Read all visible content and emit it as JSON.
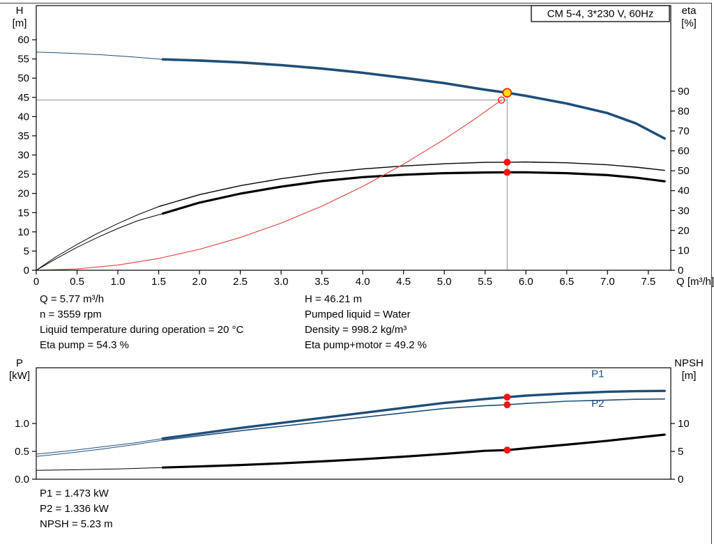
{
  "colors": {
    "blue": "#1f4e79",
    "black": "#000000",
    "red": "#e25048",
    "marker": "#f61414",
    "yellow": "#ffdf00",
    "gray": "#909090"
  },
  "chart_data": [
    {
      "id": "head-eta-chart",
      "type": "line",
      "title_box": "CM 5-4, 3*230 V, 60Hz",
      "x_axis": {
        "label": "Q [m³/h]",
        "min": 0,
        "max": 7.775,
        "ticks": [
          0,
          0.5,
          1,
          1.5,
          2,
          2.5,
          3,
          3.5,
          4,
          4.5,
          5,
          5.5,
          6,
          6.5,
          7,
          7.5
        ],
        "tick_labels": [
          "0",
          "0.5",
          "1.0",
          "1.5",
          "2.0",
          "2.5",
          "3.0",
          "3.5",
          "4.0",
          "4.5",
          "5.0",
          "5.5",
          "6.0",
          "6.5",
          "7.0",
          "7.5"
        ]
      },
      "y_left": {
        "title": [
          "H",
          "[m]"
        ],
        "min": 0,
        "max": 68.9,
        "ticks": [
          0,
          5,
          10,
          15,
          20,
          25,
          30,
          35,
          40,
          45,
          50,
          55,
          60
        ],
        "tick_labels": [
          "0",
          "5",
          "10",
          "15",
          "20",
          "25",
          "30",
          "35",
          "40",
          "45",
          "50",
          "55",
          "60"
        ]
      },
      "y_right": {
        "title": [
          "eta",
          "[%]"
        ],
        "min": 0,
        "max": 133,
        "ticks": [
          0,
          10,
          20,
          30,
          40,
          50,
          60,
          70,
          80,
          90
        ],
        "tick_labels": [
          "0",
          "10",
          "20",
          "30",
          "40",
          "50",
          "60",
          "70",
          "80",
          "90"
        ]
      },
      "series": [
        {
          "name": "head-curve-ext",
          "axis": "left",
          "color": "blue",
          "width": 1,
          "x": [
            0,
            0.4,
            0.8,
            1.2,
            1.55
          ],
          "y": [
            56.8,
            56.5,
            56.1,
            55.5,
            54.9
          ]
        },
        {
          "name": "head-curve",
          "axis": "left",
          "color": "blue",
          "width": 3.6,
          "x": [
            1.55,
            2,
            2.5,
            3,
            3.5,
            4,
            4.5,
            5,
            5.5,
            5.77,
            6,
            6.5,
            7,
            7.35,
            7.7
          ],
          "y": [
            54.9,
            54.6,
            54.1,
            53.4,
            52.5,
            51.4,
            50.1,
            48.7,
            47.0,
            46.21,
            45.4,
            43.4,
            40.9,
            38.2,
            34.3
          ]
        },
        {
          "name": "eta-pump-curve-ext",
          "axis": "right",
          "color": "black",
          "width": 1,
          "x": [
            0,
            0.25,
            0.5,
            0.75,
            1,
            1.25,
            1.5
          ],
          "y": [
            0,
            7,
            13,
            18.5,
            23.5,
            28,
            32
          ]
        },
        {
          "name": "eta-pump-curve",
          "axis": "right",
          "color": "black",
          "width": 1.4,
          "x": [
            1.5,
            2,
            2.5,
            3,
            3.5,
            4,
            4.5,
            5,
            5.5,
            5.77,
            6,
            6.5,
            7,
            7.35,
            7.7
          ],
          "y": [
            32,
            38,
            42.5,
            46,
            48.8,
            50.9,
            52.4,
            53.5,
            54.2,
            54.3,
            54.4,
            54.0,
            53.0,
            51.8,
            50.2
          ]
        },
        {
          "name": "eta-pump-motor-curve-ext",
          "axis": "right",
          "color": "black",
          "width": 1,
          "x": [
            0,
            0.25,
            0.5,
            0.75,
            1,
            1.25,
            1.55
          ],
          "y": [
            0,
            6,
            11.5,
            16.5,
            21,
            25,
            28.5
          ]
        },
        {
          "name": "eta-pump-motor-curve",
          "axis": "right",
          "color": "black",
          "width": 3.2,
          "x": [
            1.55,
            2,
            2.5,
            3,
            3.5,
            4,
            4.5,
            5,
            5.5,
            5.77,
            6,
            6.5,
            7,
            7.35,
            7.7
          ],
          "y": [
            28.5,
            34,
            38.5,
            42,
            44.8,
            46.8,
            48.0,
            48.8,
            49.15,
            49.2,
            49.2,
            48.8,
            47.8,
            46.5,
            44.7
          ]
        },
        {
          "name": "system-curve",
          "axis": "left",
          "color": "red",
          "width": 1.2,
          "x": [
            0,
            0.5,
            1,
            1.5,
            2,
            2.5,
            3,
            3.5,
            4,
            4.5,
            5,
            5.35,
            5.7
          ],
          "y": [
            0,
            0.34,
            1.36,
            3.07,
            5.45,
            8.52,
            12.27,
            16.7,
            21.82,
            27.61,
            34.09,
            39.03,
            44.3
          ]
        }
      ],
      "ref_lines": [
        {
          "name": "duty-head-refline",
          "type": "h",
          "axis": "left",
          "v": 44.3,
          "from": 0,
          "to": 5.77
        },
        {
          "name": "duty-flow-refline",
          "type": "v",
          "axis": "left",
          "v": 5.77,
          "from": 0,
          "to": 46.21
        }
      ],
      "markers": [
        {
          "name": "requested-duty-point",
          "axis": "left",
          "x": 5.7,
          "y": 44.3,
          "r": 4.5,
          "fill": "none",
          "stroke": "marker",
          "sw": 1.3
        },
        {
          "name": "duty-point",
          "axis": "left",
          "x": 5.77,
          "y": 46.21,
          "r": 6,
          "fill": "yellow",
          "stroke": "marker",
          "sw": 1.6
        },
        {
          "name": "eta-pump-point",
          "axis": "right",
          "x": 5.77,
          "y": 54.3,
          "r": 5,
          "fill": "marker"
        },
        {
          "name": "eta-pump-motor-point",
          "axis": "right",
          "x": 5.77,
          "y": 49.2,
          "r": 5,
          "fill": "marker"
        }
      ]
    },
    {
      "id": "power-npsh-chart",
      "type": "line",
      "x_axis": {
        "label": "",
        "min": 0,
        "max": 7.775,
        "ticks": [],
        "tick_labels": []
      },
      "y_left": {
        "title": [
          "P",
          "[kW]"
        ],
        "min": 0,
        "max": 2,
        "ticks": [
          0,
          0.5,
          1
        ],
        "tick_labels": [
          "0.0",
          "0.5",
          "1.0"
        ]
      },
      "y_right": {
        "title": [
          "NPSH",
          "[m]"
        ],
        "min": 0,
        "max": 20,
        "ticks": [
          0,
          5,
          10
        ],
        "tick_labels": [
          "0",
          "5",
          "10"
        ]
      },
      "series": [
        {
          "name": "p1-curve-ext",
          "axis": "left",
          "color": "blue",
          "width": 1,
          "x": [
            0,
            0.4,
            0.8,
            1.2,
            1.55
          ],
          "y": [
            0.45,
            0.51,
            0.58,
            0.65,
            0.73
          ]
        },
        {
          "name": "p1-curve",
          "axis": "left",
          "color": "blue",
          "width": 3.4,
          "x": [
            1.55,
            2,
            2.5,
            3,
            3.5,
            4,
            4.5,
            5,
            5.5,
            5.77,
            6,
            6.5,
            7,
            7.35,
            7.7
          ],
          "y": [
            0.73,
            0.82,
            0.92,
            1.01,
            1.1,
            1.19,
            1.28,
            1.37,
            1.44,
            1.473,
            1.5,
            1.54,
            1.57,
            1.58,
            1.585
          ]
        },
        {
          "name": "p2-curve-ext",
          "axis": "left",
          "color": "blue",
          "width": 1,
          "x": [
            0,
            0.4,
            0.8,
            1.2,
            1.55
          ],
          "y": [
            0.41,
            0.47,
            0.54,
            0.62,
            0.7
          ]
        },
        {
          "name": "p2-curve",
          "axis": "left",
          "color": "blue",
          "width": 1.6,
          "x": [
            1.55,
            2,
            2.5,
            3,
            3.5,
            4,
            4.5,
            5,
            5.5,
            5.77,
            6,
            6.5,
            7,
            7.35,
            7.7
          ],
          "y": [
            0.7,
            0.78,
            0.87,
            0.95,
            1.03,
            1.11,
            1.19,
            1.27,
            1.32,
            1.336,
            1.36,
            1.4,
            1.42,
            1.435,
            1.44
          ]
        },
        {
          "name": "npsh-curve-ext",
          "axis": "right",
          "color": "black",
          "width": 1,
          "x": [
            0,
            0.5,
            1,
            1.55
          ],
          "y": [
            1.6,
            1.7,
            1.85,
            2.1
          ]
        },
        {
          "name": "npsh-curve",
          "axis": "right",
          "color": "black",
          "width": 3.2,
          "x": [
            1.55,
            2,
            2.5,
            3,
            3.5,
            4,
            4.5,
            5,
            5.5,
            5.77,
            6,
            6.5,
            7,
            7.35,
            7.7
          ],
          "y": [
            2.1,
            2.3,
            2.55,
            2.85,
            3.2,
            3.6,
            4.05,
            4.55,
            5.1,
            5.23,
            5.55,
            6.2,
            6.9,
            7.45,
            8.0
          ]
        }
      ],
      "labels": [
        {
          "text": "P1",
          "axis": "left",
          "x": 6.88,
          "y": 1.83,
          "color": "blue"
        },
        {
          "text": "P2",
          "axis": "left",
          "x": 6.88,
          "y": 1.3,
          "color": "blue"
        }
      ],
      "markers": [
        {
          "name": "p1-point",
          "axis": "left",
          "x": 5.77,
          "y": 1.473,
          "r": 5,
          "fill": "marker"
        },
        {
          "name": "p2-point",
          "axis": "left",
          "x": 5.77,
          "y": 1.336,
          "r": 5,
          "fill": "marker"
        },
        {
          "name": "npsh-point",
          "axis": "right",
          "x": 5.77,
          "y": 5.23,
          "r": 5,
          "fill": "marker"
        }
      ]
    }
  ],
  "annotations": {
    "mid_left": [
      "Q = 5.77 m³/h",
      "n = 3559 rpm",
      "Liquid temperature during operation = 20 °C",
      "Eta pump = 54.3 %"
    ],
    "mid_right": [
      "H = 46.21 m",
      "Pumped liquid = Water",
      "Density = 998.2 kg/m³",
      "Eta pump+motor = 49.2 %"
    ],
    "bottom": [
      "P1 = 1.473 kW",
      "P2 = 1.336 kW",
      "NPSH = 5.23 m"
    ]
  }
}
